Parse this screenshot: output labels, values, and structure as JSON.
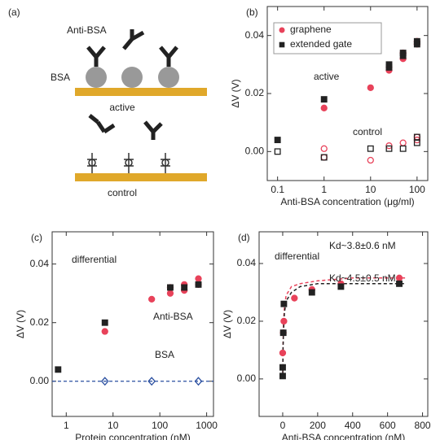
{
  "panel_a": {
    "label": "(a)",
    "antibody": "Anti-BSA",
    "protein": "BSA",
    "active": "active",
    "control": "control"
  },
  "chart_data": [
    {
      "type": "scatter",
      "panel_label": "(b)",
      "xlabel": "Anti-BSA concentration (μg/ml)",
      "ylabel": "ΔV (V)",
      "xscale": "log",
      "xlim": [
        0.06,
        170
      ],
      "xticks": [
        0.1,
        1,
        10,
        100
      ],
      "ylim": [
        -0.01,
        0.05
      ],
      "yticks": [
        {
          "value": 0,
          "label": "0.00"
        },
        {
          "value": 0.02,
          "label": "0.02"
        },
        {
          "value": 0.04,
          "label": "0.04"
        }
      ],
      "legend": "upper left",
      "annotations": [
        {
          "text": "active"
        },
        {
          "text": "control"
        }
      ],
      "series": [
        {
          "name": "graphene",
          "color": "#e8425a",
          "marker": "circle",
          "filled": true,
          "x": [
            1,
            10,
            25,
            25,
            50,
            50,
            100,
            100
          ],
          "values": [
            0.015,
            0.022,
            0.028,
            0.029,
            0.032,
            0.034,
            0.037,
            0.038
          ]
        },
        {
          "name": "extended gate",
          "color": "#222222",
          "marker": "square",
          "filled": true,
          "x": [
            0.1,
            1,
            25,
            25,
            50,
            50,
            100,
            100
          ],
          "values": [
            0.004,
            0.018,
            0.029,
            0.03,
            0.033,
            0.034,
            0.037,
            0.038
          ]
        },
        {
          "color": "#e8425a",
          "marker": "circle",
          "filled": false,
          "x": [
            1,
            1,
            10,
            25,
            50,
            100,
            100
          ],
          "values": [
            0.001,
            -0.002,
            -0.003,
            0.002,
            0.003,
            0.004,
            0.005
          ]
        },
        {
          "color": "#222222",
          "marker": "square",
          "filled": false,
          "x": [
            0.1,
            1,
            10,
            25,
            50,
            100,
            100
          ],
          "values": [
            0,
            -0.002,
            0.001,
            0.001,
            0.001,
            0.003,
            0.005
          ]
        }
      ]
    },
    {
      "type": "scatter",
      "panel_label": "(c)",
      "xlabel": "Protein concentration (nM)",
      "ylabel": "ΔV (V)",
      "xscale": "log",
      "xlim": [
        0.5,
        1400
      ],
      "xticks": [
        1,
        10,
        100,
        1000
      ],
      "ylim": [
        -0.012,
        0.051
      ],
      "yticks": [
        {
          "value": 0,
          "label": "0.00"
        },
        {
          "value": 0.02,
          "label": "0.02"
        },
        {
          "value": 0.04,
          "label": "0.04"
        }
      ],
      "annotations": [
        {
          "text": "differential"
        },
        {
          "text": "Anti-BSA"
        },
        {
          "text": "BSA",
          "color": "#2a4fa0"
        }
      ],
      "reference_line": {
        "value": 0,
        "color": "#2a4fa0"
      },
      "series": [
        {
          "color": "#e8425a",
          "marker": "circle",
          "filled": true,
          "x": [
            6.7,
            67,
            167,
            167,
            333,
            333,
            667,
            667
          ],
          "values": [
            0.017,
            0.028,
            0.03,
            0.032,
            0.031,
            0.033,
            0.033,
            0.035
          ]
        },
        {
          "color": "#222222",
          "marker": "square",
          "filled": true,
          "x": [
            0.67,
            6.7,
            167,
            333,
            667
          ],
          "values": [
            0.004,
            0.02,
            0.032,
            0.032,
            0.033
          ]
        },
        {
          "color": "#2a4fa0",
          "marker": "diamond",
          "filled": false,
          "x": [
            6.7,
            67,
            667
          ],
          "values": [
            0,
            0,
            0
          ]
        }
      ]
    },
    {
      "type": "scatter",
      "panel_label": "(d)",
      "xlabel": "Anti-BSA concentration (nM)",
      "ylabel": "ΔV (V)",
      "xlim": [
        -135,
        830
      ],
      "xticks": [
        0,
        200,
        400,
        600,
        800
      ],
      "ylim": [
        -0.013,
        0.051
      ],
      "yticks": [
        {
          "value": 0,
          "label": "0.00"
        },
        {
          "value": 0.02,
          "label": "0.02"
        },
        {
          "value": 0.04,
          "label": "0.04"
        }
      ],
      "annotations": [
        {
          "text": "differential"
        },
        {
          "text": "Kd~3.8±0.6 nM",
          "color": "#e8425a"
        },
        {
          "text": "Kd~4.5±0.5 nM"
        }
      ],
      "series": [
        {
          "color": "#e8425a",
          "line": "dashed",
          "x": [
            0,
            2,
            5,
            10,
            20,
            50,
            100,
            200,
            400,
            700
          ],
          "values": [
            0,
            0.012,
            0.02,
            0.025,
            0.029,
            0.032,
            0.033,
            0.034,
            0.035,
            0.035
          ]
        },
        {
          "color": "#222222",
          "line": "dashed",
          "x": [
            0,
            2,
            5,
            10,
            20,
            50,
            100,
            200,
            400,
            700
          ],
          "values": [
            0,
            0.011,
            0.017,
            0.023,
            0.027,
            0.03,
            0.032,
            0.033,
            0.033,
            0.033
          ]
        },
        {
          "color": "#e8425a",
          "marker": "circle",
          "filled": true,
          "x": [
            0,
            3.3,
            6.7,
            67,
            167,
            333,
            667
          ],
          "values": [
            0.009,
            0.016,
            0.02,
            0.028,
            0.031,
            0.033,
            0.035
          ]
        },
        {
          "color": "#222222",
          "marker": "square",
          "filled": true,
          "x": [
            0,
            0,
            3.3,
            6.7,
            167,
            333,
            667
          ],
          "values": [
            0.001,
            0.004,
            0.016,
            0.026,
            0.03,
            0.032,
            0.033
          ]
        }
      ]
    }
  ]
}
